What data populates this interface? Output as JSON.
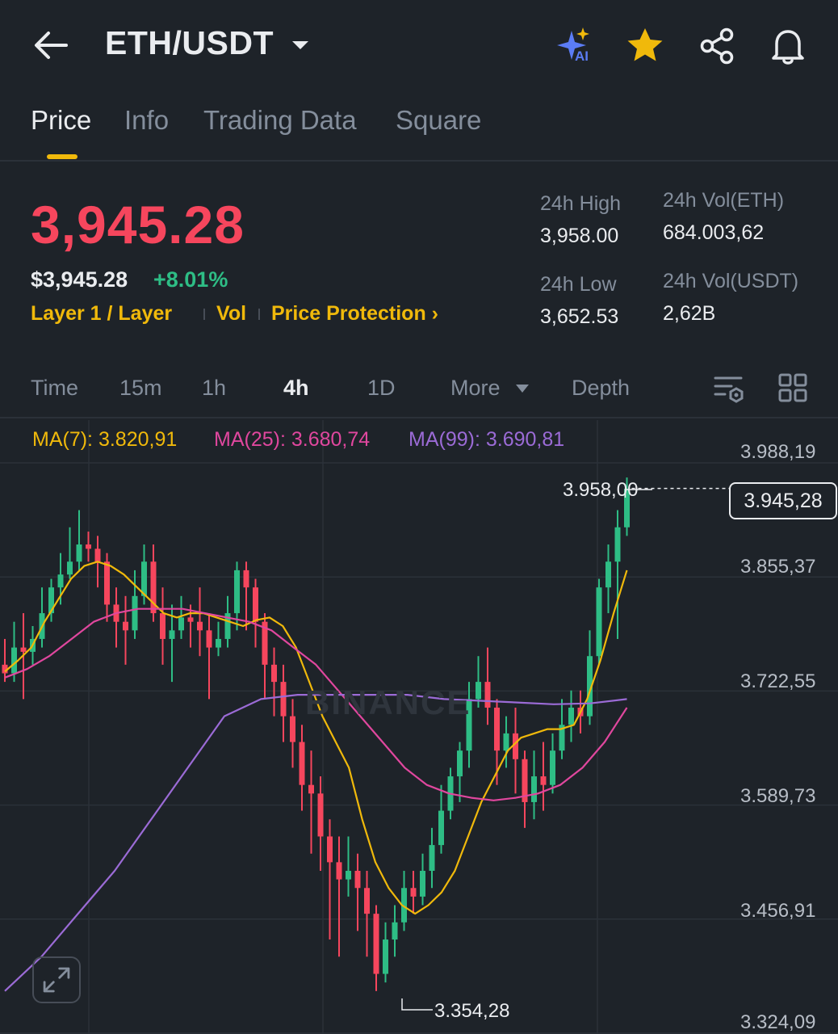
{
  "header": {
    "pair": "ETH/USDT",
    "ai_badge": "AI",
    "icons": [
      "back-arrow-icon",
      "caret-down-icon",
      "ai-sparkle-icon",
      "star-icon",
      "share-icon",
      "bell-icon"
    ]
  },
  "tabs": [
    {
      "label": "Price",
      "active": true
    },
    {
      "label": "Info",
      "active": false
    },
    {
      "label": "Trading Data",
      "active": false
    },
    {
      "label": "Square",
      "active": false
    }
  ],
  "price": {
    "last": "3,945.28",
    "usd": "$3,945.28",
    "change": "+8.01%",
    "tags": [
      "Layer 1 / Layer",
      "Vol",
      "Price Protection ›"
    ]
  },
  "stats": {
    "high_label": "24h High",
    "high_value": "3,958.00",
    "low_label": "24h Low",
    "low_value": "3,652.53",
    "vol_base_label": "24h Vol(ETH)",
    "vol_base_value": "684.003,62",
    "vol_quote_label": "24h Vol(USDT)",
    "vol_quote_value": "2,62B"
  },
  "timeframes": {
    "items": [
      "Time",
      "15m",
      "1h",
      "4h",
      "1D",
      "More",
      "Depth"
    ],
    "active": "4h"
  },
  "ma": {
    "ma7": "MA(7): 3.820,91",
    "ma25": "MA(25): 3.680,74",
    "ma99": "MA(99): 3.690,81"
  },
  "chart_data": {
    "type": "candlestick",
    "y_axis_labels": [
      "3.988,19",
      "3.855,37",
      "3.722,55",
      "3.589,73",
      "3.456,91",
      "3.324,09"
    ],
    "ylim": [
      3324.09,
      3988.19
    ],
    "high_marker": "3.958,00",
    "low_marker": "3.354,28",
    "last_price_label": "3.945,28",
    "watermark": "BINANCE",
    "colors": {
      "up": "#2ebd85",
      "down": "#f6465d",
      "ma7": "#f0b90b",
      "ma25": "#e0479e",
      "ma99": "#9b6bd6"
    },
    "candles": [
      [
        3740,
        3730,
        3770,
        3720
      ],
      [
        3730,
        3760,
        3790,
        3720
      ],
      [
        3760,
        3755,
        3800,
        3700
      ],
      [
        3755,
        3770,
        3785,
        3740
      ],
      [
        3770,
        3800,
        3830,
        3760
      ],
      [
        3800,
        3830,
        3840,
        3790
      ],
      [
        3830,
        3845,
        3870,
        3810
      ],
      [
        3845,
        3860,
        3900,
        3840
      ],
      [
        3860,
        3880,
        3920,
        3850
      ],
      [
        3880,
        3875,
        3895,
        3860
      ],
      [
        3875,
        3860,
        3890,
        3830
      ],
      [
        3860,
        3810,
        3870,
        3790
      ],
      [
        3810,
        3790,
        3830,
        3760
      ],
      [
        3790,
        3780,
        3820,
        3740
      ],
      [
        3780,
        3820,
        3850,
        3770
      ],
      [
        3820,
        3860,
        3880,
        3810
      ],
      [
        3860,
        3800,
        3880,
        3790
      ],
      [
        3800,
        3770,
        3830,
        3740
      ],
      [
        3770,
        3780,
        3810,
        3720
      ],
      [
        3780,
        3795,
        3820,
        3770
      ],
      [
        3795,
        3790,
        3810,
        3760
      ],
      [
        3790,
        3780,
        3830,
        3750
      ],
      [
        3780,
        3760,
        3800,
        3700
      ],
      [
        3760,
        3770,
        3790,
        3750
      ],
      [
        3770,
        3800,
        3820,
        3760
      ],
      [
        3800,
        3850,
        3860,
        3780
      ],
      [
        3850,
        3830,
        3860,
        3780
      ],
      [
        3830,
        3790,
        3840,
        3760
      ],
      [
        3790,
        3740,
        3800,
        3700
      ],
      [
        3740,
        3720,
        3760,
        3680
      ],
      [
        3720,
        3680,
        3740,
        3650
      ],
      [
        3680,
        3650,
        3700,
        3620
      ],
      [
        3650,
        3600,
        3670,
        3570
      ],
      [
        3600,
        3590,
        3640,
        3520
      ],
      [
        3590,
        3540,
        3610,
        3500
      ],
      [
        3540,
        3510,
        3560,
        3420
      ],
      [
        3510,
        3490,
        3540,
        3400
      ],
      [
        3490,
        3500,
        3540,
        3470
      ],
      [
        3500,
        3480,
        3520,
        3430
      ],
      [
        3480,
        3450,
        3500,
        3400
      ],
      [
        3450,
        3380,
        3460,
        3360
      ],
      [
        3380,
        3420,
        3440,
        3370
      ],
      [
        3420,
        3440,
        3460,
        3400
      ],
      [
        3440,
        3480,
        3500,
        3430
      ],
      [
        3480,
        3470,
        3500,
        3450
      ],
      [
        3470,
        3500,
        3520,
        3460
      ],
      [
        3500,
        3530,
        3550,
        3480
      ],
      [
        3530,
        3570,
        3600,
        3520
      ],
      [
        3570,
        3610,
        3620,
        3560
      ],
      [
        3610,
        3640,
        3650,
        3580
      ],
      [
        3640,
        3700,
        3720,
        3620
      ],
      [
        3700,
        3720,
        3750,
        3690
      ],
      [
        3720,
        3690,
        3760,
        3670
      ],
      [
        3690,
        3640,
        3700,
        3600
      ],
      [
        3640,
        3660,
        3680,
        3620
      ],
      [
        3660,
        3630,
        3690,
        3590
      ],
      [
        3630,
        3580,
        3640,
        3550
      ],
      [
        3580,
        3610,
        3640,
        3560
      ],
      [
        3610,
        3600,
        3650,
        3570
      ],
      [
        3600,
        3640,
        3660,
        3590
      ],
      [
        3640,
        3670,
        3700,
        3630
      ],
      [
        3670,
        3690,
        3710,
        3650
      ],
      [
        3690,
        3680,
        3710,
        3660
      ],
      [
        3680,
        3750,
        3780,
        3670
      ],
      [
        3750,
        3830,
        3840,
        3740
      ],
      [
        3830,
        3860,
        3880,
        3800
      ],
      [
        3860,
        3900,
        3920,
        3770
      ],
      [
        3900,
        3945,
        3958,
        3890
      ]
    ],
    "ma7_line": [
      3732,
      3745,
      3760,
      3790,
      3815,
      3840,
      3855,
      3860,
      3855,
      3845,
      3830,
      3815,
      3800,
      3795,
      3800,
      3800,
      3795,
      3790,
      3785,
      3792,
      3795,
      3785,
      3760,
      3720,
      3680,
      3650,
      3620,
      3560,
      3510,
      3480,
      3460,
      3450,
      3460,
      3475,
      3500,
      3540,
      3580,
      3610,
      3640,
      3655,
      3660,
      3665,
      3665,
      3670,
      3700,
      3745,
      3800,
      3850
    ],
    "ma25_line": [
      3725,
      3735,
      3750,
      3770,
      3790,
      3800,
      3805,
      3805,
      3805,
      3800,
      3795,
      3790,
      3780,
      3760,
      3740,
      3710,
      3680,
      3650,
      3620,
      3600,
      3590,
      3585,
      3582,
      3585,
      3590,
      3600,
      3620,
      3650,
      3690
    ],
    "ma99_line": [
      3360,
      3400,
      3450,
      3500,
      3560,
      3620,
      3680,
      3700,
      3705,
      3705,
      3705,
      3705,
      3700,
      3698,
      3696,
      3694,
      3695,
      3700
    ]
  },
  "controls": {
    "expand_icon": "expand-icon",
    "settings_icon": "chart-settings-icon",
    "grid_icon": "layout-grid-icon"
  }
}
